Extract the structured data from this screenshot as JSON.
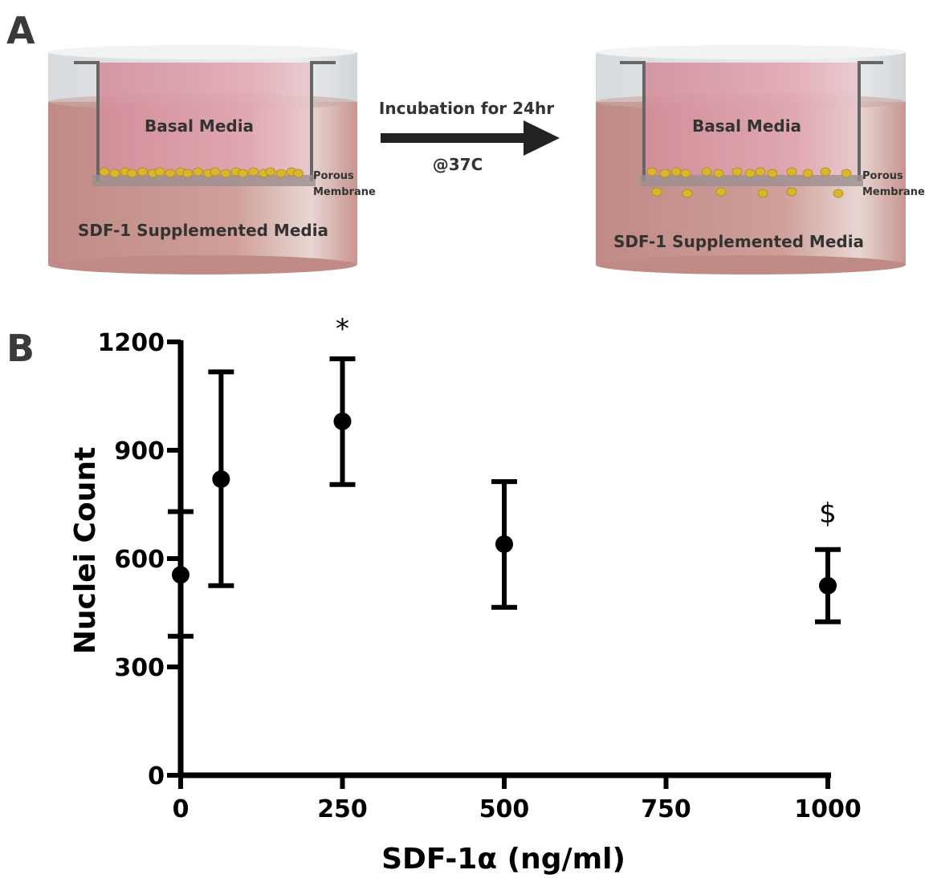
{
  "panel_a": {
    "letter": "A",
    "left": {
      "inner_label": "Basal Media",
      "outer_label": "SDF-1 Supplemented Media",
      "membrane_label_1": "Porous",
      "membrane_label_2": "Membrane"
    },
    "arrow": {
      "label_top": "Incubation for 24hr",
      "label_bottom": "@37C"
    },
    "right": {
      "inner_label": "Basal Media",
      "outer_label": "SDF-1 Supplemented Media",
      "membrane_label_1": "Porous",
      "membrane_label_2": "Membrane"
    },
    "colors": {
      "outer_media": "#c8958e",
      "inner_media": "#d9a0ab",
      "top_rim": "#e2e4e6",
      "membrane": "#9a8e8e",
      "cells": "#d9b62e"
    }
  },
  "panel_b": {
    "letter": "B"
  },
  "chart_data": {
    "type": "scatter",
    "xlabel": "SDF-1α (ng/ml)",
    "ylabel": "Nuclei Count",
    "xlim": [
      0,
      1000
    ],
    "ylim": [
      0,
      1200
    ],
    "x_ticks": [
      "0",
      "250",
      "500",
      "750",
      "1000"
    ],
    "y_ticks": [
      "0",
      "300",
      "600",
      "900",
      "1200"
    ],
    "grid": false,
    "series": [
      {
        "points": [
          {
            "x": 0,
            "y": 555,
            "err_low": 385,
            "err_high": 730,
            "annotation": ""
          },
          {
            "x": 62.5,
            "y": 820,
            "err_low": 525,
            "err_high": 1117,
            "annotation": ""
          },
          {
            "x": 250,
            "y": 980,
            "err_low": 805,
            "err_high": 1153,
            "annotation": "*"
          },
          {
            "x": 500,
            "y": 640,
            "err_low": 465,
            "err_high": 813,
            "annotation": ""
          },
          {
            "x": 1000,
            "y": 525,
            "err_low": 425,
            "err_high": 625,
            "annotation": "$"
          }
        ]
      }
    ]
  }
}
